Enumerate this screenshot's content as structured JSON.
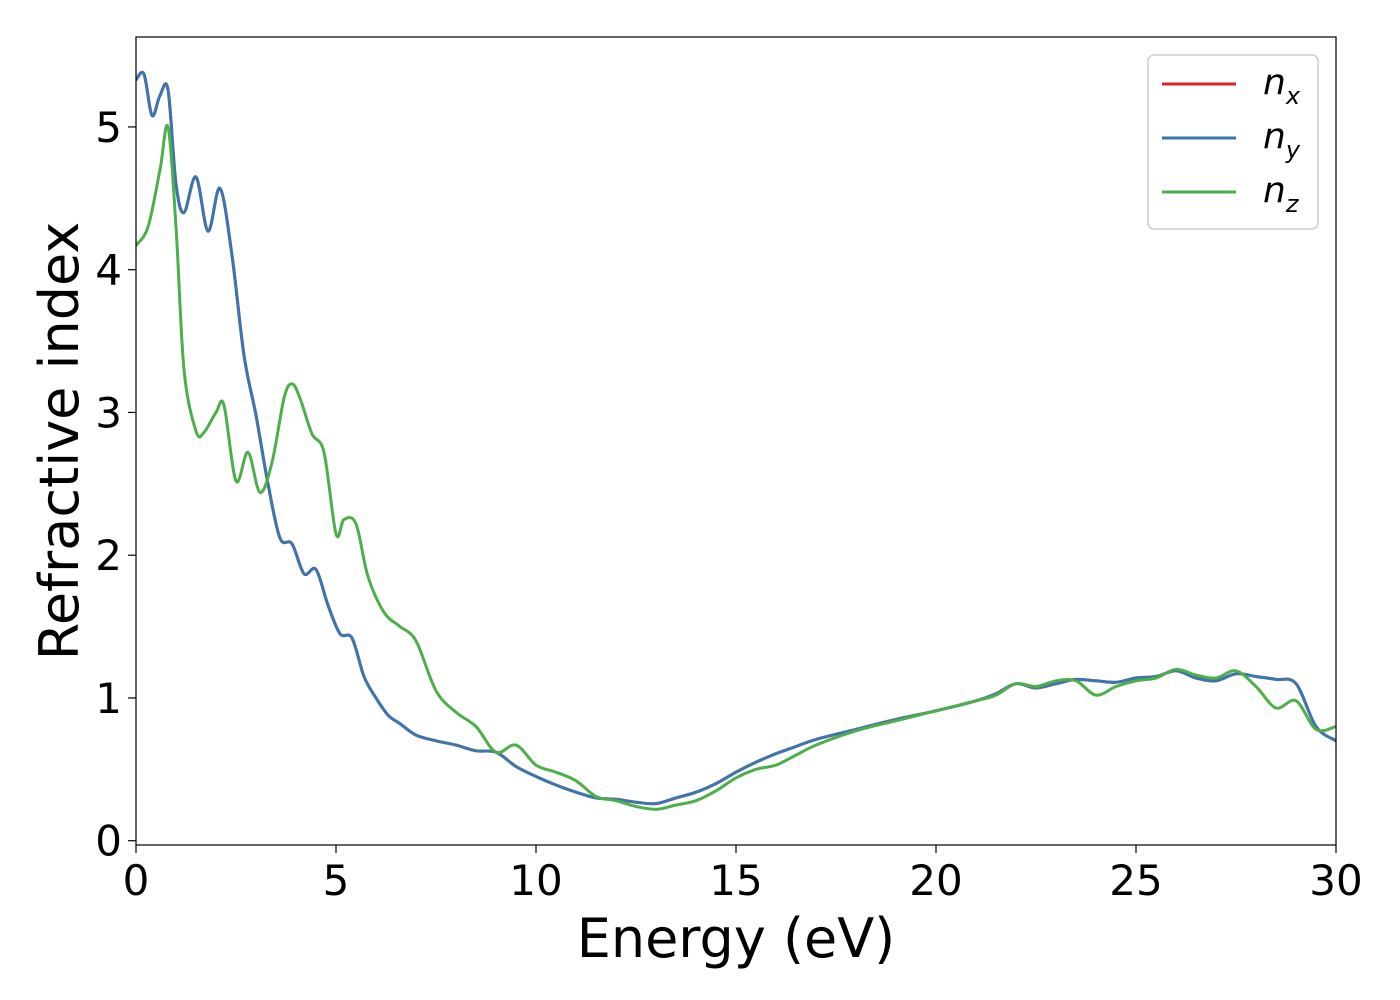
{
  "chart_data": {
    "type": "line",
    "xlabel": "Energy (eV)",
    "ylabel": "Refractive index",
    "xlim": [
      0,
      30
    ],
    "ylim": [
      -0.03,
      5.63
    ],
    "xticks": [
      0,
      5,
      10,
      15,
      20,
      25,
      30
    ],
    "yticks": [
      0,
      1,
      2,
      3,
      4,
      5
    ],
    "grid": false,
    "legend_position": "top-right",
    "series": [
      {
        "name": "n",
        "subscript": "x",
        "color": "#d62728",
        "x": [
          0,
          0.2,
          0.4,
          0.6,
          0.8,
          1.0,
          1.2,
          1.5,
          1.8,
          2.1,
          2.4,
          2.7,
          3.0,
          3.3,
          3.6,
          3.9,
          4.2,
          4.5,
          4.8,
          5.1,
          5.4,
          5.7,
          6.0,
          6.3,
          6.6,
          7.0,
          7.5,
          8.0,
          8.5,
          9.0,
          9.5,
          10.0,
          10.5,
          11.0,
          11.5,
          12.0,
          12.5,
          13.0,
          13.5,
          14.0,
          14.5,
          15.0,
          15.5,
          16.0,
          16.5,
          17.0,
          18.0,
          19.0,
          20.0,
          21.0,
          21.5,
          22.0,
          22.5,
          23.0,
          23.5,
          24.0,
          24.5,
          25.0,
          25.5,
          26.0,
          26.5,
          27.0,
          27.5,
          28.0,
          28.5,
          29.0,
          29.5,
          30.0
        ],
        "y": [
          5.33,
          5.37,
          5.08,
          5.22,
          5.26,
          4.6,
          4.4,
          4.65,
          4.27,
          4.57,
          4.1,
          3.4,
          2.98,
          2.5,
          2.12,
          2.08,
          1.87,
          1.9,
          1.65,
          1.45,
          1.42,
          1.15,
          1.0,
          0.88,
          0.82,
          0.74,
          0.7,
          0.67,
          0.63,
          0.62,
          0.52,
          0.45,
          0.39,
          0.34,
          0.3,
          0.29,
          0.27,
          0.26,
          0.3,
          0.34,
          0.4,
          0.48,
          0.55,
          0.61,
          0.66,
          0.71,
          0.78,
          0.85,
          0.91,
          0.98,
          1.03,
          1.1,
          1.07,
          1.1,
          1.13,
          1.12,
          1.11,
          1.14,
          1.15,
          1.19,
          1.14,
          1.12,
          1.17,
          1.15,
          1.13,
          1.1,
          0.8,
          0.7
        ]
      },
      {
        "name": "n",
        "subscript": "y",
        "color": "#3a76b0",
        "x": [
          0,
          0.2,
          0.4,
          0.6,
          0.8,
          1.0,
          1.2,
          1.5,
          1.8,
          2.1,
          2.4,
          2.7,
          3.0,
          3.3,
          3.6,
          3.9,
          4.2,
          4.5,
          4.8,
          5.1,
          5.4,
          5.7,
          6.0,
          6.3,
          6.6,
          7.0,
          7.5,
          8.0,
          8.5,
          9.0,
          9.5,
          10.0,
          10.5,
          11.0,
          11.5,
          12.0,
          12.5,
          13.0,
          13.5,
          14.0,
          14.5,
          15.0,
          15.5,
          16.0,
          16.5,
          17.0,
          18.0,
          19.0,
          20.0,
          21.0,
          21.5,
          22.0,
          22.5,
          23.0,
          23.5,
          24.0,
          24.5,
          25.0,
          25.5,
          26.0,
          26.5,
          27.0,
          27.5,
          28.0,
          28.5,
          29.0,
          29.5,
          30.0
        ],
        "y": [
          5.33,
          5.37,
          5.08,
          5.22,
          5.26,
          4.6,
          4.4,
          4.65,
          4.27,
          4.57,
          4.1,
          3.4,
          2.98,
          2.5,
          2.12,
          2.08,
          1.87,
          1.9,
          1.65,
          1.45,
          1.42,
          1.15,
          1.0,
          0.88,
          0.82,
          0.74,
          0.7,
          0.67,
          0.63,
          0.62,
          0.52,
          0.45,
          0.39,
          0.34,
          0.3,
          0.29,
          0.27,
          0.26,
          0.3,
          0.34,
          0.4,
          0.48,
          0.55,
          0.61,
          0.66,
          0.71,
          0.78,
          0.85,
          0.91,
          0.98,
          1.03,
          1.1,
          1.07,
          1.1,
          1.13,
          1.12,
          1.11,
          1.14,
          1.15,
          1.19,
          1.14,
          1.12,
          1.17,
          1.15,
          1.13,
          1.1,
          0.8,
          0.7
        ]
      },
      {
        "name": "n",
        "subscript": "z",
        "color": "#4daf4a",
        "x": [
          0,
          0.3,
          0.6,
          0.8,
          1.0,
          1.2,
          1.5,
          1.7,
          2.0,
          2.2,
          2.5,
          2.8,
          3.1,
          3.4,
          3.7,
          3.9,
          4.1,
          4.4,
          4.7,
          5.0,
          5.2,
          5.5,
          5.8,
          6.2,
          6.6,
          7.0,
          7.5,
          8.0,
          8.5,
          9.0,
          9.5,
          10.0,
          10.5,
          11.0,
          11.5,
          12.0,
          12.5,
          13.0,
          13.5,
          14.0,
          14.5,
          15.0,
          15.5,
          16.0,
          16.5,
          17.0,
          18.0,
          19.0,
          20.0,
          21.0,
          21.5,
          22.0,
          22.5,
          23.0,
          23.5,
          24.0,
          24.5,
          25.0,
          25.5,
          26.0,
          26.5,
          27.0,
          27.5,
          28.0,
          28.5,
          29.0,
          29.5,
          30.0
        ],
        "y": [
          4.17,
          4.3,
          4.7,
          5.0,
          4.3,
          3.3,
          2.87,
          2.86,
          3.0,
          3.05,
          2.52,
          2.72,
          2.44,
          2.65,
          3.1,
          3.2,
          3.1,
          2.85,
          2.72,
          2.15,
          2.25,
          2.22,
          1.85,
          1.6,
          1.5,
          1.4,
          1.05,
          0.9,
          0.8,
          0.62,
          0.67,
          0.53,
          0.48,
          0.42,
          0.31,
          0.28,
          0.24,
          0.22,
          0.25,
          0.28,
          0.35,
          0.44,
          0.5,
          0.53,
          0.6,
          0.67,
          0.77,
          0.84,
          0.91,
          0.98,
          1.02,
          1.1,
          1.08,
          1.12,
          1.12,
          1.02,
          1.08,
          1.12,
          1.14,
          1.2,
          1.16,
          1.14,
          1.19,
          1.08,
          0.93,
          0.98,
          0.78,
          0.8
        ]
      }
    ]
  }
}
